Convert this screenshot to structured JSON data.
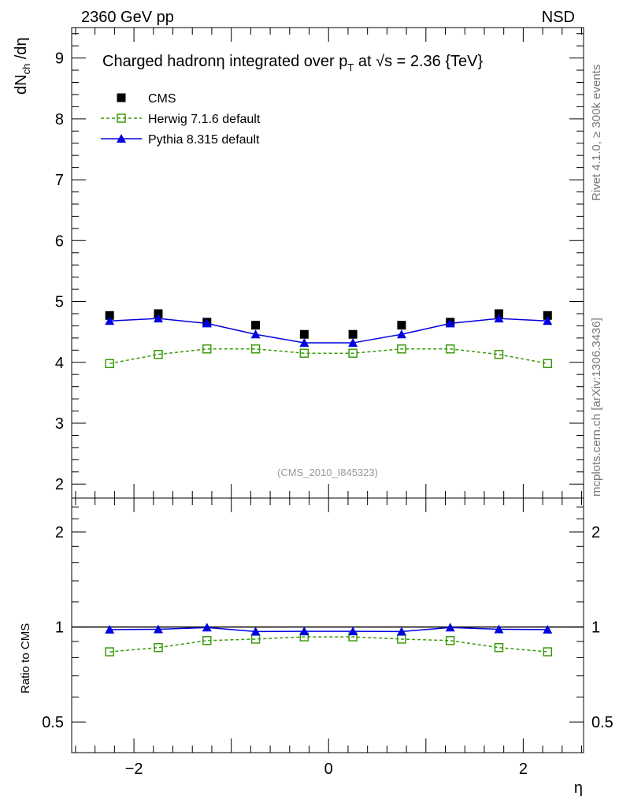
{
  "header": {
    "left": "2360 GeV pp",
    "right": "NSD"
  },
  "side_labels": {
    "rivet": "Rivet 4.1.0, ≥ 300k events",
    "mcplots": "mcplots.cern.ch [arXiv:1306.3436]"
  },
  "analysis_id": "(CMS_2010_I845323)",
  "chart_data": [
    {
      "type": "line",
      "title": "Charged hadronη integrated over p_T at √s = 2.36 {TeV}",
      "title_parts": {
        "a": "Charged hadronη integrated over p",
        "sub": "T",
        "b": " at ",
        "sqrt": "√",
        "c": "s = 2.36 {TeV}"
      },
      "ylabel": "dN_ch/dη",
      "ylabel_parts": {
        "a": "dN",
        "sub": "ch",
        "b": " /dη"
      },
      "xlabel": "η",
      "xlim": [
        -2.64,
        2.62
      ],
      "ylim": [
        1.77,
        9.5
      ],
      "yticks": [
        2,
        3,
        4,
        5,
        6,
        7,
        8,
        9
      ],
      "xticks": [
        -2,
        0,
        2
      ],
      "x": [
        -2.25,
        -1.75,
        -1.25,
        -0.75,
        -0.25,
        0.25,
        0.75,
        1.25,
        1.75,
        2.25
      ],
      "legend_position": "top-left",
      "series": [
        {
          "name": "CMS",
          "color": "#000000",
          "marker": "filled-square",
          "line": "none",
          "values": [
            4.77,
            4.8,
            4.66,
            4.61,
            4.46,
            4.46,
            4.61,
            4.66,
            4.8,
            4.77
          ]
        },
        {
          "name": "Herwig 7.1.6 default",
          "color": "#3a9a0a",
          "marker": "open-square",
          "line": "dashed",
          "values": [
            3.98,
            4.13,
            4.22,
            4.22,
            4.15,
            4.15,
            4.22,
            4.22,
            4.13,
            3.98
          ]
        },
        {
          "name": "Pythia 8.315 default",
          "color": "#0000e0",
          "marker": "filled-triangle",
          "line": "solid",
          "values": [
            4.68,
            4.72,
            4.64,
            4.46,
            4.32,
            4.32,
            4.46,
            4.64,
            4.72,
            4.68
          ]
        }
      ]
    },
    {
      "type": "line",
      "ylabel": "Ratio to CMS",
      "yscale": "log",
      "ylim": [
        0.4,
        2.56
      ],
      "yticks": [
        0.5,
        1,
        2
      ],
      "ytick_labels": [
        "0.5",
        "1",
        "2"
      ],
      "reference": "CMS"
    }
  ]
}
